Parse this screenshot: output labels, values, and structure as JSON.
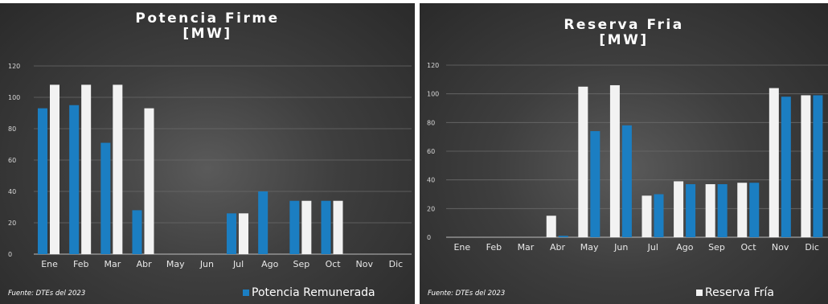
{
  "colors": {
    "blue": "#1b7ec2",
    "white": "#f2f2f2"
  },
  "charts": [
    {
      "title": "Potencia Firme",
      "unit": "[MW]",
      "source": "Fuente: DTEs del 2023",
      "legend": "Potencia Remunerada"
    },
    {
      "title": "Reserva Fria",
      "unit": "[MW]",
      "source": "Fuente: DTEs del 2023",
      "legend": "Reserva Fría"
    }
  ],
  "chart_data": [
    {
      "type": "bar",
      "title": "Potencia Firme [MW]",
      "categories": [
        "Ene",
        "Feb",
        "Mar",
        "Abr",
        "May",
        "Jun",
        "Jul",
        "Ago",
        "Sep",
        "Oct",
        "Nov",
        "Dic"
      ],
      "yticks": [
        0,
        20,
        40,
        60,
        80,
        100,
        120
      ],
      "ylim": [
        0,
        120
      ],
      "grid": true,
      "legend_position": "bottom-right",
      "series": [
        {
          "name": "Potencia Remunerada",
          "color": "#1b7ec2",
          "values": [
            93,
            95,
            71,
            28,
            null,
            null,
            26,
            40,
            34,
            34,
            null,
            null
          ]
        },
        {
          "color": "#f2f2f2",
          "values": [
            108,
            108,
            108,
            93,
            null,
            null,
            26,
            null,
            34,
            34,
            null,
            null
          ]
        }
      ]
    },
    {
      "type": "bar",
      "title": "Reserva Fria [MW]",
      "categories": [
        "Ene",
        "Feb",
        "Mar",
        "Abr",
        "May",
        "Jun",
        "Jul",
        "Ago",
        "Sep",
        "Oct",
        "Nov",
        "Dic"
      ],
      "yticks": [
        0,
        20,
        40,
        60,
        80,
        100,
        120
      ],
      "ylim": [
        0,
        120
      ],
      "grid": true,
      "legend_position": "bottom-right",
      "series": [
        {
          "name": "Reserva Fría",
          "color": "#f2f2f2",
          "values": [
            null,
            null,
            null,
            15,
            105,
            106,
            29,
            39,
            37,
            38,
            104,
            99
          ]
        },
        {
          "color": "#1b7ec2",
          "values": [
            null,
            null,
            null,
            1,
            74,
            78,
            30,
            37,
            37,
            38,
            98,
            99
          ]
        }
      ]
    }
  ]
}
